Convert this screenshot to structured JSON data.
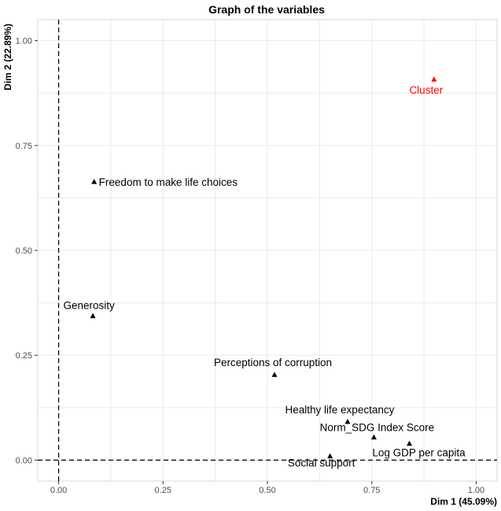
{
  "chart_data": {
    "type": "scatter",
    "title": "Graph of the variables",
    "xlabel": "Dim 1 (45.09%)",
    "ylabel": "Dim 2 (22.89%)",
    "xlim": [
      -0.05,
      1.05
    ],
    "ylim": [
      -0.05,
      1.05
    ],
    "xticks": [
      0.0,
      0.25,
      0.5,
      0.75,
      1.0
    ],
    "yticks": [
      0.0,
      0.25,
      0.5,
      0.75,
      1.0
    ],
    "xtick_labels": [
      "0.00",
      "0.25",
      "0.50",
      "0.75",
      "1.00"
    ],
    "ytick_labels": [
      "0.00",
      "0.25",
      "0.50",
      "0.75",
      "1.00"
    ],
    "grid": true,
    "reference_lines": [
      {
        "axis": "x",
        "value": 0,
        "style": "dashed"
      },
      {
        "axis": "y",
        "value": 0,
        "style": "dashed"
      }
    ],
    "points": [
      {
        "label": "Freedom to make life choices",
        "x": 0.085,
        "y": 0.663,
        "color": "#000000",
        "label_anchor": "start"
      },
      {
        "label": "Generosity",
        "x": 0.082,
        "y": 0.343,
        "color": "#000000",
        "label_anchor": "middle"
      },
      {
        "label": "Perceptions of corruption",
        "x": 0.517,
        "y": 0.203,
        "color": "#000000",
        "label_anchor": "middle"
      },
      {
        "label": "Healthy life expectancy",
        "x": 0.692,
        "y": 0.091,
        "color": "#000000",
        "label_anchor": "middle"
      },
      {
        "label": "Norm_SDG Index Score",
        "x": 0.755,
        "y": 0.054,
        "color": "#000000",
        "label_anchor": "middle"
      },
      {
        "label": "Log GDP per capita",
        "x": 0.84,
        "y": 0.039,
        "color": "#000000",
        "label_anchor": "middle"
      },
      {
        "label": "Social support",
        "x": 0.65,
        "y": 0.009,
        "color": "#000000",
        "label_anchor": "middle"
      },
      {
        "label": "Cluster",
        "x": 0.899,
        "y": 0.907,
        "color": "#ff0000",
        "label_anchor": "middle"
      }
    ]
  }
}
